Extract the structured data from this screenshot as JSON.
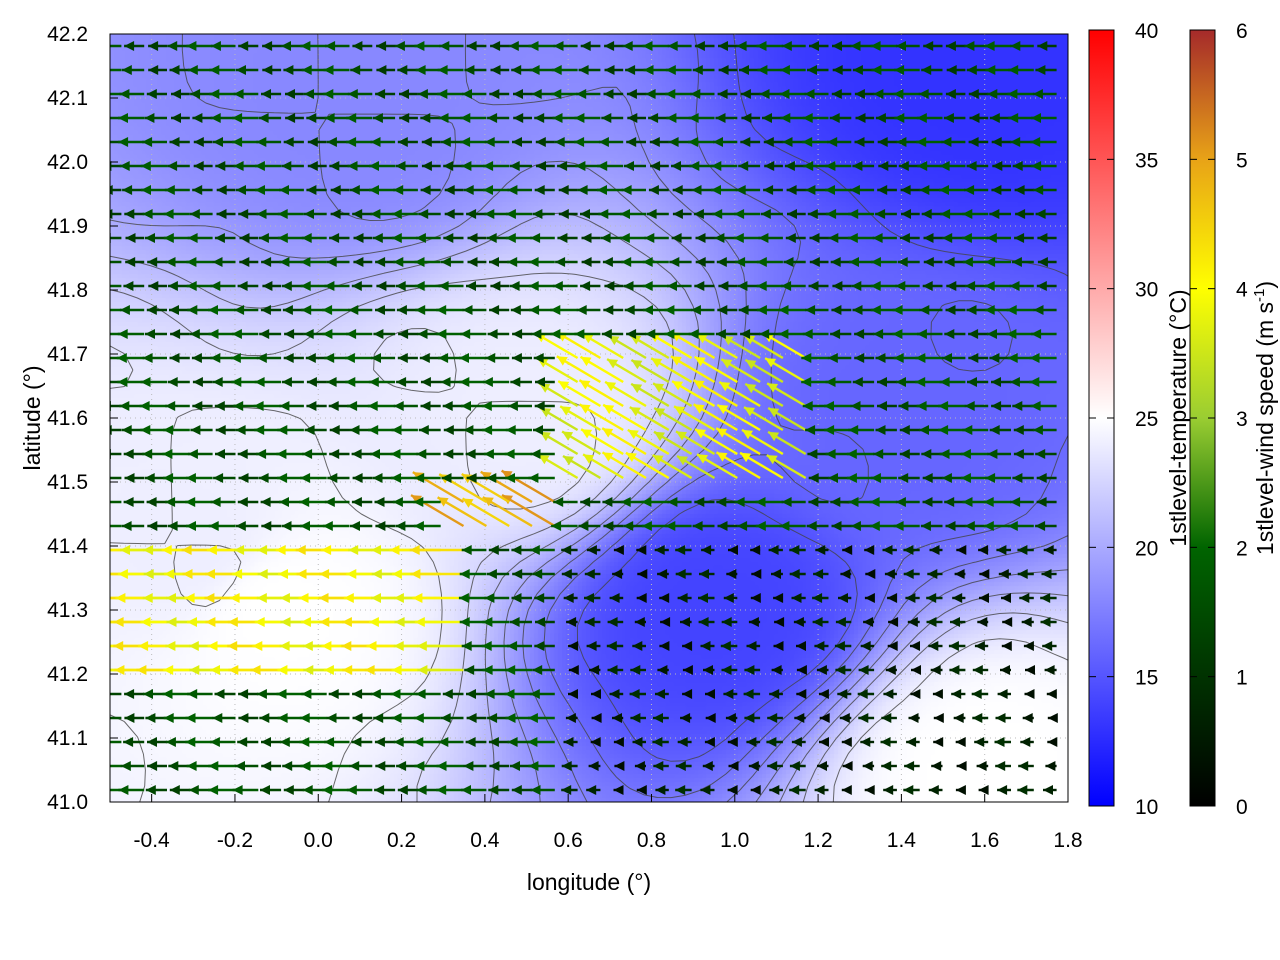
{
  "chart_data": {
    "type": "heatmap",
    "xlabel": "longitude (°)",
    "ylabel": "latitude (°)",
    "xlim": [
      -0.5,
      1.8
    ],
    "ylim": [
      41.0,
      42.2
    ],
    "x_ticks": [
      "-0.4",
      "-0.2",
      "0.0",
      "0.2",
      "0.4",
      "0.6",
      "0.8",
      "1.0",
      "1.2",
      "1.4",
      "1.6",
      "1.8"
    ],
    "y_ticks": [
      "41.0",
      "41.1",
      "41.2",
      "41.3",
      "41.4",
      "41.5",
      "41.6",
      "41.7",
      "41.8",
      "41.9",
      "42.0",
      "42.1",
      "42.2"
    ],
    "grid": "dotted",
    "colorbars": [
      {
        "label": "1stlevel-temperature (°C)",
        "range": [
          10,
          40
        ],
        "ticks": [
          "10",
          "15",
          "20",
          "25",
          "30",
          "35",
          "40"
        ],
        "colors": [
          "#0000ff",
          "#ffffff",
          "#ff0000"
        ]
      },
      {
        "label": "1stlevel-wind speed (m s-1)",
        "label_main": "1stlevel-wind speed (m s",
        "label_sup": "-1",
        "label_end": ")",
        "range": [
          0,
          6
        ],
        "ticks": [
          "0",
          "1",
          "2",
          "3",
          "4",
          "5",
          "6"
        ],
        "colors": [
          "#000000",
          "#006400",
          "#9acd32",
          "#ffff00",
          "#e8a317",
          "#a52a2a"
        ]
      }
    ],
    "temperature_field": {
      "description_points": [
        {
          "lon": -0.3,
          "lat": 41.4,
          "t": 24
        },
        {
          "lon": -0.1,
          "lat": 41.3,
          "t": 25
        },
        {
          "lon": 0.5,
          "lat": 41.6,
          "t": 24
        },
        {
          "lon": 0.95,
          "lat": 41.3,
          "t": 14
        },
        {
          "lon": 1.6,
          "lat": 42.15,
          "t": 13
        },
        {
          "lon": 1.6,
          "lat": 41.05,
          "t": 25
        },
        {
          "lon": 0.1,
          "lat": 42.1,
          "t": 18
        },
        {
          "lon": 1.4,
          "lat": 41.6,
          "t": 16
        }
      ]
    },
    "wind_regions": [
      {
        "lon_range": [
          -0.5,
          0.4
        ],
        "lat_range": [
          41.2,
          41.4
        ],
        "direction": "westward",
        "speed": 4.0
      },
      {
        "lon_range": [
          0.3,
          0.6
        ],
        "lat_range": [
          41.4,
          41.5
        ],
        "direction": "northwestward",
        "speed": 4.8
      },
      {
        "lon_range": [
          0.6,
          1.2
        ],
        "lat_range": [
          41.5,
          41.7
        ],
        "direction": "northwestward",
        "speed": 3.8
      },
      {
        "lon_range": [
          -0.5,
          1.8
        ],
        "lat_range": [
          41.8,
          42.2
        ],
        "direction": "westward",
        "speed": 1.5
      },
      {
        "lon_range": [
          0.6,
          1.8
        ],
        "lat_range": [
          41.0,
          41.4
        ],
        "direction": "westward",
        "speed": 0.6
      }
    ]
  }
}
